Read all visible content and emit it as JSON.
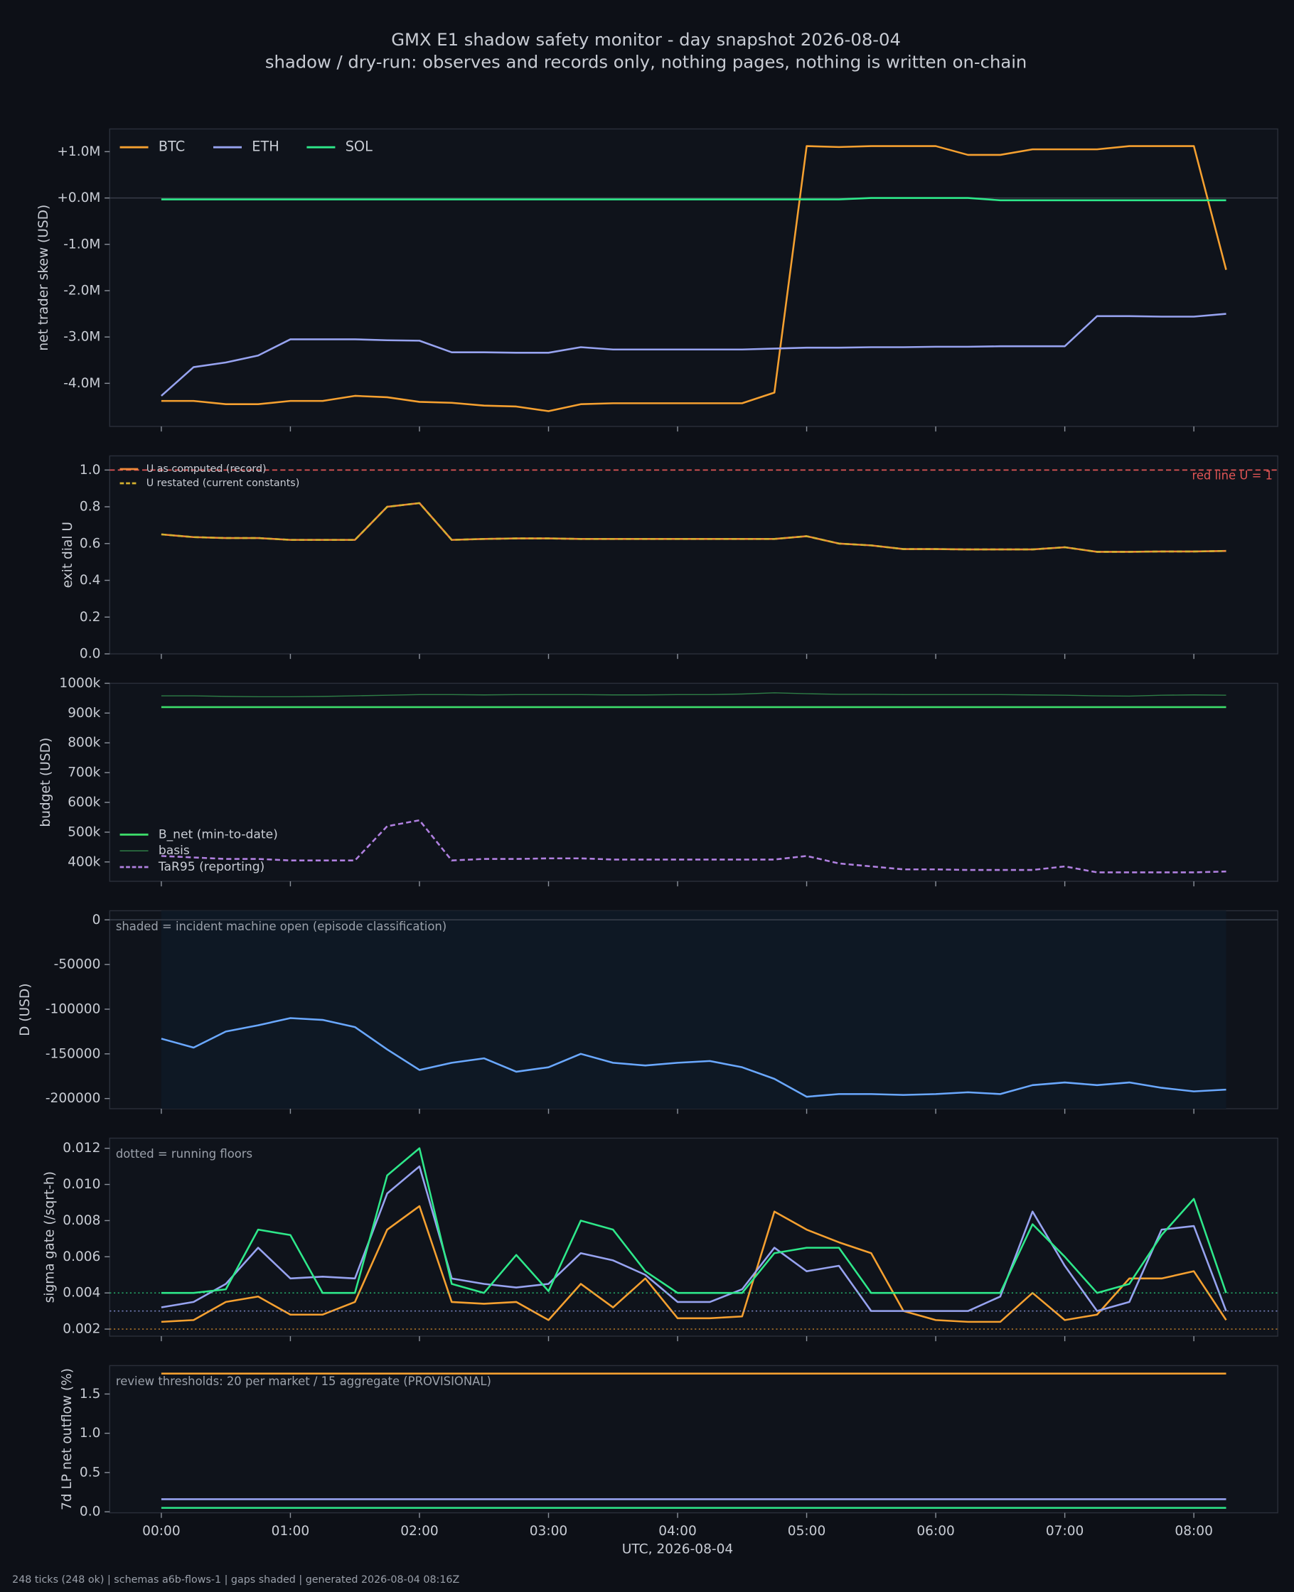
{
  "title": "GMX E1 shadow safety monitor - day snapshot 2026-08-04",
  "subtitle": "shadow / dry-run: observes and records only, nothing pages, nothing is written on-chain",
  "footer": "248 ticks (248 ok) | schemas a6b-flows-1 | gaps shaded | generated 2026-08-04 08:16Z",
  "x_axis": {
    "xlim": [
      -0.4,
      8.65
    ],
    "label": "UTC, 2026-08-04",
    "xticks": [
      {
        "value": 0,
        "label": "00:00"
      },
      {
        "value": 1,
        "label": "01:00"
      },
      {
        "value": 2,
        "label": "02:00"
      },
      {
        "value": 3,
        "label": "03:00"
      },
      {
        "value": 4,
        "label": "04:00"
      },
      {
        "value": 5,
        "label": "05:00"
      },
      {
        "value": 6,
        "label": "06:00"
      },
      {
        "value": 7,
        "label": "07:00"
      },
      {
        "value": 8,
        "label": "08:00"
      }
    ]
  },
  "chart_data": [
    {
      "type": "line",
      "ylabel": "net trader skew (USD)",
      "ylim": [
        -4930000,
        1490000
      ],
      "zero_line": true,
      "yticks": [
        {
          "value": 1000000,
          "label": "+1.0M"
        },
        {
          "value": 0,
          "label": "+0.0M"
        },
        {
          "value": -1000000,
          "label": "-1.0M"
        },
        {
          "value": -2000000,
          "label": "-2.0M"
        },
        {
          "value": -3000000,
          "label": "-3.0M"
        },
        {
          "value": -4000000,
          "label": "-4.0M"
        }
      ],
      "legend": "upper left",
      "legend_columns": 3,
      "x": [
        0,
        0.25,
        0.5,
        0.75,
        1,
        1.25,
        1.5,
        1.75,
        2,
        2.25,
        2.5,
        2.75,
        3,
        3.25,
        3.5,
        3.75,
        4,
        4.25,
        4.5,
        4.75,
        5,
        5.25,
        5.5,
        5.75,
        6,
        6.25,
        6.5,
        6.75,
        7,
        7.25,
        7.5,
        7.75,
        8,
        8.25
      ],
      "series": [
        {
          "name": "BTC",
          "color": "#f5a030",
          "values": [
            -4380000,
            -4380000,
            -4450000,
            -4450000,
            -4380000,
            -4380000,
            -4270000,
            -4300000,
            -4400000,
            -4420000,
            -4480000,
            -4500000,
            -4600000,
            -4450000,
            -4430000,
            -4430000,
            -4430000,
            -4430000,
            -4430000,
            -4200000,
            1120000,
            1100000,
            1120000,
            1120000,
            1120000,
            930000,
            930000,
            1050000,
            1050000,
            1050000,
            1120000,
            1120000,
            1120000,
            -1550000
          ]
        },
        {
          "name": "ETH",
          "color": "#97a3f0",
          "values": [
            -4270000,
            -3650000,
            -3550000,
            -3400000,
            -3050000,
            -3050000,
            -3050000,
            -3070000,
            -3080000,
            -3330000,
            -3330000,
            -3340000,
            -3340000,
            -3220000,
            -3270000,
            -3270000,
            -3270000,
            -3270000,
            -3270000,
            -3250000,
            -3230000,
            -3230000,
            -3220000,
            -3220000,
            -3210000,
            -3210000,
            -3200000,
            -3200000,
            -3200000,
            -2550000,
            -2550000,
            -2560000,
            -2560000,
            -2500000
          ]
        },
        {
          "name": "SOL",
          "color": "#2ee88a",
          "values": [
            -30000,
            -30000,
            -30000,
            -30000,
            -30000,
            -30000,
            -30000,
            -30000,
            -30000,
            -30000,
            -30000,
            -30000,
            -30000,
            -30000,
            -30000,
            -30000,
            -30000,
            -30000,
            -30000,
            -30000,
            -30000,
            -30000,
            0,
            0,
            0,
            0,
            -50000,
            -50000,
            -50000,
            -50000,
            -50000,
            -50000,
            -50000,
            -50000
          ]
        }
      ]
    },
    {
      "type": "line",
      "ylabel": "exit dial U",
      "ylim": [
        0,
        1.077
      ],
      "yticks": [
        {
          "value": 0,
          "label": "0.0"
        },
        {
          "value": 0.2,
          "label": "0.2"
        },
        {
          "value": 0.4,
          "label": "0.4"
        },
        {
          "value": 0.6,
          "label": "0.6"
        },
        {
          "value": 0.8,
          "label": "0.8"
        },
        {
          "value": 1,
          "label": "1.0"
        }
      ],
      "threshold": {
        "value": 1,
        "label": "red line U = 1",
        "color": "#e05555"
      },
      "legend": "upper left",
      "x": [
        0,
        0.25,
        0.5,
        0.75,
        1,
        1.25,
        1.5,
        1.75,
        2,
        2.25,
        2.5,
        2.75,
        3,
        3.25,
        3.5,
        3.75,
        4,
        4.25,
        4.5,
        4.75,
        5,
        5.25,
        5.5,
        5.75,
        6,
        6.25,
        6.5,
        6.75,
        7,
        7.25,
        7.5,
        7.75,
        8,
        8.25
      ],
      "series": [
        {
          "name": "U as computed (record)",
          "color": "#f08a3a",
          "values": [
            0.65,
            0.635,
            0.63,
            0.63,
            0.62,
            0.62,
            0.62,
            0.8,
            0.82,
            0.62,
            0.625,
            0.628,
            0.628,
            0.625,
            0.625,
            0.625,
            0.625,
            0.625,
            0.625,
            0.625,
            0.64,
            0.6,
            0.59,
            0.57,
            0.57,
            0.568,
            0.568,
            0.568,
            0.58,
            0.555,
            0.555,
            0.557,
            0.557,
            0.56
          ]
        },
        {
          "name": "U restated (current constants)",
          "color": "#d4b030",
          "dashed": true,
          "values": [
            0.65,
            0.635,
            0.63,
            0.63,
            0.62,
            0.62,
            0.62,
            0.8,
            0.82,
            0.62,
            0.625,
            0.628,
            0.628,
            0.625,
            0.625,
            0.625,
            0.625,
            0.625,
            0.625,
            0.625,
            0.64,
            0.6,
            0.59,
            0.57,
            0.57,
            0.568,
            0.568,
            0.568,
            0.58,
            0.555,
            0.555,
            0.557,
            0.557,
            0.56
          ]
        }
      ]
    },
    {
      "type": "line",
      "ylabel": "budget (USD)",
      "ylim": [
        335000,
        1000000
      ],
      "yticks": [
        {
          "value": 400000,
          "label": "400k"
        },
        {
          "value": 500000,
          "label": "500k"
        },
        {
          "value": 600000,
          "label": "600k"
        },
        {
          "value": 700000,
          "label": "700k"
        },
        {
          "value": 800000,
          "label": "800k"
        },
        {
          "value": 900000,
          "label": "900k"
        },
        {
          "value": 1000000,
          "label": "1000k"
        }
      ],
      "legend": "lower left",
      "x": [
        0,
        0.25,
        0.5,
        0.75,
        1,
        1.25,
        1.5,
        1.75,
        2,
        2.25,
        2.5,
        2.75,
        3,
        3.25,
        3.5,
        3.75,
        4,
        4.25,
        4.5,
        4.75,
        5,
        5.25,
        5.5,
        5.75,
        6,
        6.25,
        6.5,
        6.75,
        7,
        7.25,
        7.5,
        7.75,
        8,
        8.25
      ],
      "series": [
        {
          "name": "B_net (min-to-date)",
          "color": "#3ddc6a",
          "values": [
            920000,
            920000,
            920000,
            920000,
            920000,
            920000,
            920000,
            920000,
            920000,
            920000,
            920000,
            920000,
            920000,
            920000,
            920000,
            920000,
            920000,
            920000,
            920000,
            920000,
            920000,
            920000,
            920000,
            920000,
            920000,
            920000,
            920000,
            920000,
            920000,
            920000,
            920000,
            920000,
            920000,
            920000
          ]
        },
        {
          "name": "basis",
          "color": "#2e7d46",
          "thin": true,
          "values": [
            958000,
            958000,
            956000,
            955000,
            955000,
            956000,
            958000,
            960000,
            962000,
            962000,
            961000,
            962000,
            962000,
            962000,
            961000,
            961000,
            962000,
            962000,
            964000,
            968000,
            965000,
            963000,
            963000,
            962000,
            962000,
            962000,
            962000,
            961000,
            960000,
            958000,
            957000,
            960000,
            961000,
            960000
          ]
        },
        {
          "name": "TaR95 (reporting)",
          "color": "#b080e0",
          "dashed": true,
          "values": [
            420000,
            415000,
            410000,
            410000,
            405000,
            405000,
            405000,
            520000,
            540000,
            405000,
            410000,
            410000,
            412000,
            412000,
            408000,
            408000,
            408000,
            408000,
            408000,
            408000,
            420000,
            395000,
            385000,
            375000,
            375000,
            373000,
            373000,
            373000,
            385000,
            365000,
            365000,
            365000,
            365000,
            368000
          ]
        }
      ]
    },
    {
      "type": "line",
      "ylabel": "D (USD)",
      "ylim": [
        -211400,
        10200
      ],
      "zero_line": true,
      "yticks": [
        0,
        -50000,
        -100000,
        -150000,
        -200000
      ],
      "shade": {
        "x": [
          0,
          8.25
        ],
        "label": "shaded = incident machine open (episode classification)"
      },
      "x": [
        0,
        0.25,
        0.5,
        0.75,
        1,
        1.25,
        1.5,
        1.75,
        2,
        2.25,
        2.5,
        2.75,
        3,
        3.25,
        3.5,
        3.75,
        4,
        4.25,
        4.5,
        4.75,
        5,
        5.25,
        5.5,
        5.75,
        6,
        6.25,
        6.5,
        6.75,
        7,
        7.25,
        7.5,
        7.75,
        8,
        8.25
      ],
      "series": [
        {
          "color": "#6aa8ff",
          "values": [
            -133000,
            -143000,
            -125000,
            -118000,
            -110000,
            -112000,
            -120000,
            -145000,
            -168000,
            -160000,
            -155000,
            -170000,
            -165000,
            -150000,
            -160000,
            -163000,
            -160000,
            -158000,
            -165000,
            -178000,
            -198000,
            -195000,
            -195000,
            -196000,
            -195000,
            -193000,
            -195000,
            -185000,
            -182000,
            -185000,
            -182000,
            -188000,
            -192000,
            -190000
          ]
        }
      ]
    },
    {
      "type": "line",
      "ylabel": "sigma gate (/sqrt-h)",
      "ylim": [
        0.00161,
        0.01256
      ],
      "yticks": [
        0.002,
        0.004,
        0.006,
        0.008,
        {
          "value": 0.01,
          "label": "0.010"
        },
        0.012
      ],
      "annotation": "dotted = running floors",
      "x": [
        0,
        0.25,
        0.5,
        0.75,
        1,
        1.25,
        1.5,
        1.75,
        2,
        2.25,
        2.5,
        2.75,
        3,
        3.25,
        3.5,
        3.75,
        4,
        4.25,
        4.5,
        4.75,
        5,
        5.25,
        5.5,
        5.75,
        6,
        6.25,
        6.5,
        6.75,
        7,
        7.25,
        7.5,
        7.75,
        8,
        8.25
      ],
      "series": [
        {
          "color": "#f5a030",
          "floor": 0.002,
          "values": [
            0.0024,
            0.0025,
            0.0035,
            0.0038,
            0.0028,
            0.0028,
            0.0035,
            0.0075,
            0.0088,
            0.0035,
            0.0034,
            0.0035,
            0.0025,
            0.0045,
            0.0032,
            0.0048,
            0.0026,
            0.0026,
            0.0027,
            0.0085,
            0.0075,
            0.0068,
            0.0062,
            0.003,
            0.0025,
            0.0024,
            0.0024,
            0.004,
            0.0025,
            0.0028,
            0.0048,
            0.0048,
            0.0052,
            0.0025
          ]
        },
        {
          "color": "#97a3f0",
          "floor": 0.003,
          "values": [
            0.0032,
            0.0035,
            0.0045,
            0.0065,
            0.0048,
            0.0049,
            0.0048,
            0.0095,
            0.011,
            0.0048,
            0.0045,
            0.0043,
            0.0045,
            0.0062,
            0.0058,
            0.005,
            0.0035,
            0.0035,
            0.0042,
            0.0065,
            0.0052,
            0.0055,
            0.003,
            0.003,
            0.003,
            0.003,
            0.0038,
            0.0085,
            0.0055,
            0.003,
            0.0035,
            0.0075,
            0.0077,
            0.003
          ]
        },
        {
          "color": "#2ee88a",
          "floor": 0.004,
          "values": [
            0.004,
            0.004,
            0.0042,
            0.0075,
            0.0072,
            0.004,
            0.004,
            0.0105,
            0.012,
            0.0045,
            0.004,
            0.0061,
            0.0041,
            0.008,
            0.0075,
            0.0052,
            0.004,
            0.004,
            0.004,
            0.0062,
            0.0065,
            0.0065,
            0.004,
            0.004,
            0.004,
            0.004,
            0.004,
            0.0078,
            0.006,
            0.004,
            0.0045,
            0.0072,
            0.0092,
            0.004
          ]
        }
      ]
    },
    {
      "type": "line",
      "ylabel": "7d LP net outflow (%)",
      "ylim": [
        -0.013,
        1.862
      ],
      "yticks": [
        {
          "value": 0,
          "label": "0.0"
        },
        {
          "value": 0.5,
          "label": "0.5"
        },
        {
          "value": 1,
          "label": "1.0"
        },
        {
          "value": 1.5,
          "label": "1.5"
        }
      ],
      "annotation": "review thresholds: 20 per market / 15 aggregate (PROVISIONAL)",
      "x": [
        0,
        8.25
      ],
      "series": [
        {
          "color": "#f5a030",
          "values": [
            1.76,
            1.76
          ]
        },
        {
          "color": "#97a3f0",
          "values": [
            0.16,
            0.16
          ]
        },
        {
          "color": "#2ee88a",
          "values": [
            0.05,
            0.05
          ]
        }
      ]
    }
  ]
}
